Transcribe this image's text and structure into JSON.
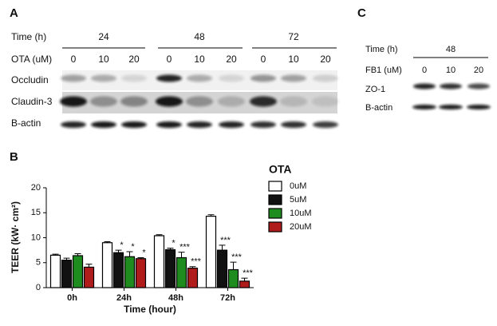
{
  "panel_a": {
    "label": "A",
    "time_label": "Time (h)",
    "times": [
      "24",
      "48",
      "72"
    ],
    "dose_label": "OTA (uM)",
    "doses": [
      "0",
      "10",
      "20",
      "0",
      "10",
      "20",
      "0",
      "10",
      "20"
    ],
    "rows": [
      "Occludin",
      "Claudin-3",
      "B-actin"
    ]
  },
  "panel_c": {
    "label": "C",
    "time_label": "Time (h)",
    "time": "48",
    "dose_label": "FB1 (uM)",
    "doses": [
      "0",
      "10",
      "20"
    ],
    "rows": [
      "ZO-1",
      "B-actin"
    ]
  },
  "chart_data": {
    "type": "bar",
    "panel_label": "B",
    "y_label": "TEER  (kW· cm²)",
    "x_label": "Time (hour)",
    "legend_title": "OTA",
    "categories": [
      "0h",
      "24h",
      "48h",
      "72h"
    ],
    "series": [
      {
        "name": "0uM",
        "color": "#ffffff",
        "values": [
          6.5,
          9.0,
          10.4,
          14.3
        ],
        "errors": [
          0.2,
          0.2,
          0.2,
          0.3
        ],
        "significance": [
          null,
          null,
          null,
          null
        ]
      },
      {
        "name": "5uM",
        "color": "#111111",
        "values": [
          5.5,
          7.0,
          7.6,
          7.5
        ],
        "errors": [
          0.4,
          0.5,
          0.3,
          1.0
        ],
        "significance": [
          null,
          "*",
          "*",
          "***"
        ]
      },
      {
        "name": "10uM",
        "color": "#1e8c1e",
        "values": [
          6.4,
          6.2,
          6.0,
          3.6
        ],
        "errors": [
          0.4,
          1.0,
          1.1,
          1.5
        ],
        "significance": [
          null,
          "*",
          "***",
          "***"
        ]
      },
      {
        "name": "20uM",
        "color": "#b01c1c",
        "values": [
          4.1,
          5.8,
          3.9,
          1.3
        ],
        "errors": [
          0.6,
          0.2,
          0.3,
          0.6
        ],
        "significance": [
          null,
          "*",
          "***",
          "***"
        ]
      }
    ],
    "ylim": [
      0,
      20
    ],
    "yticks": [
      0,
      5,
      10,
      15,
      20
    ]
  }
}
